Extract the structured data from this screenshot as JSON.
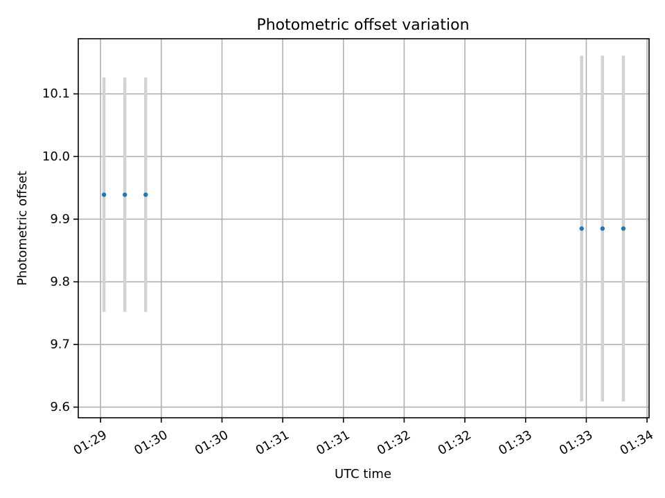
{
  "chart_data": {
    "type": "scatter",
    "title": "Photometric offset variation",
    "xlabel": "UTC time",
    "ylabel": "Photometric offset",
    "x_ticks": [
      "01:29",
      "01:30",
      "01:30",
      "01:31",
      "01:31",
      "01:32",
      "01:32",
      "01:33",
      "01:33",
      "01:34"
    ],
    "y_ticks": [
      "9.6",
      "9.7",
      "9.8",
      "9.9",
      "10.0",
      "10.1"
    ],
    "x_tick_positions_sec": [
      0,
      30,
      60,
      90,
      120,
      150,
      180,
      210,
      240,
      270
    ],
    "y_tick_values": [
      9.6,
      9.7,
      9.8,
      9.9,
      10.0,
      10.1
    ],
    "xlim_sec": [
      -11,
      271
    ],
    "ylim": [
      9.583,
      10.188
    ],
    "grid": true,
    "series": [
      {
        "points": [
          {
            "t_sec": 1.7,
            "y": 9.939,
            "err": 0.187
          },
          {
            "t_sec": 12.0,
            "y": 9.939,
            "err": 0.187
          },
          {
            "t_sec": 22.3,
            "y": 9.939,
            "err": 0.187
          },
          {
            "t_sec": 237.7,
            "y": 9.885,
            "err": 0.276
          },
          {
            "t_sec": 248.0,
            "y": 9.885,
            "err": 0.276
          },
          {
            "t_sec": 258.3,
            "y": 9.885,
            "err": 0.276
          }
        ]
      }
    ],
    "colors": {
      "marker": "#1f77b4",
      "errorbar": "#d3d3d3",
      "grid": "#b0b0b0"
    }
  }
}
